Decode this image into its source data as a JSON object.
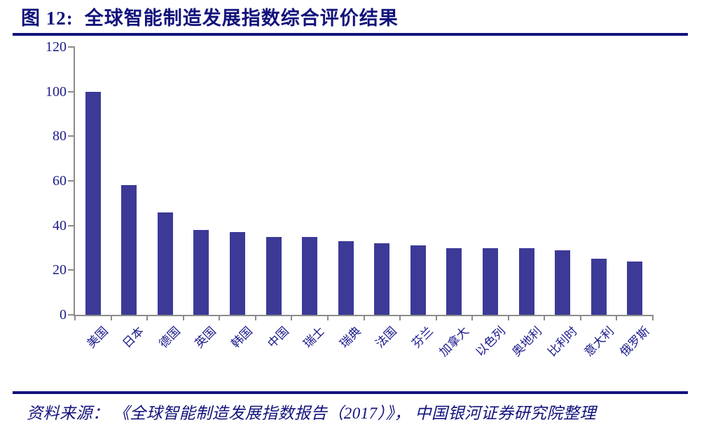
{
  "header": {
    "figure_label": "图 12:",
    "figure_title": "全球智能制造发展指数综合评价结果"
  },
  "footer": {
    "source": "资料来源： 《全球智能制造发展指数报告（2017）》， 中国银河证券研究院整理"
  },
  "colors": {
    "navy_text": "#12127C",
    "tick_label": "#1A1A8C",
    "bar": "#3C3A96",
    "axis": "#8C8C8C",
    "background": "#FFFFFF"
  },
  "chart_data": {
    "type": "bar",
    "title": "全球智能制造发展指数综合评价结果",
    "categories": [
      "美国",
      "日本",
      "德国",
      "英国",
      "韩国",
      "中国",
      "瑞士",
      "瑞典",
      "法国",
      "芬兰",
      "加拿大",
      "以色列",
      "奥地利",
      "比利时",
      "意大利",
      "俄罗斯"
    ],
    "values": [
      100,
      58,
      46,
      38,
      37,
      35,
      35,
      33,
      32,
      31,
      30,
      30,
      30,
      29,
      25,
      24
    ],
    "xlabel": "",
    "ylabel": "",
    "ylim": [
      0,
      120
    ],
    "yticks": [
      0,
      20,
      40,
      60,
      80,
      100,
      120
    ],
    "grid": false,
    "legend": "none",
    "bar_color": "#3C3A96",
    "x_tick_rotation_deg": 45
  }
}
